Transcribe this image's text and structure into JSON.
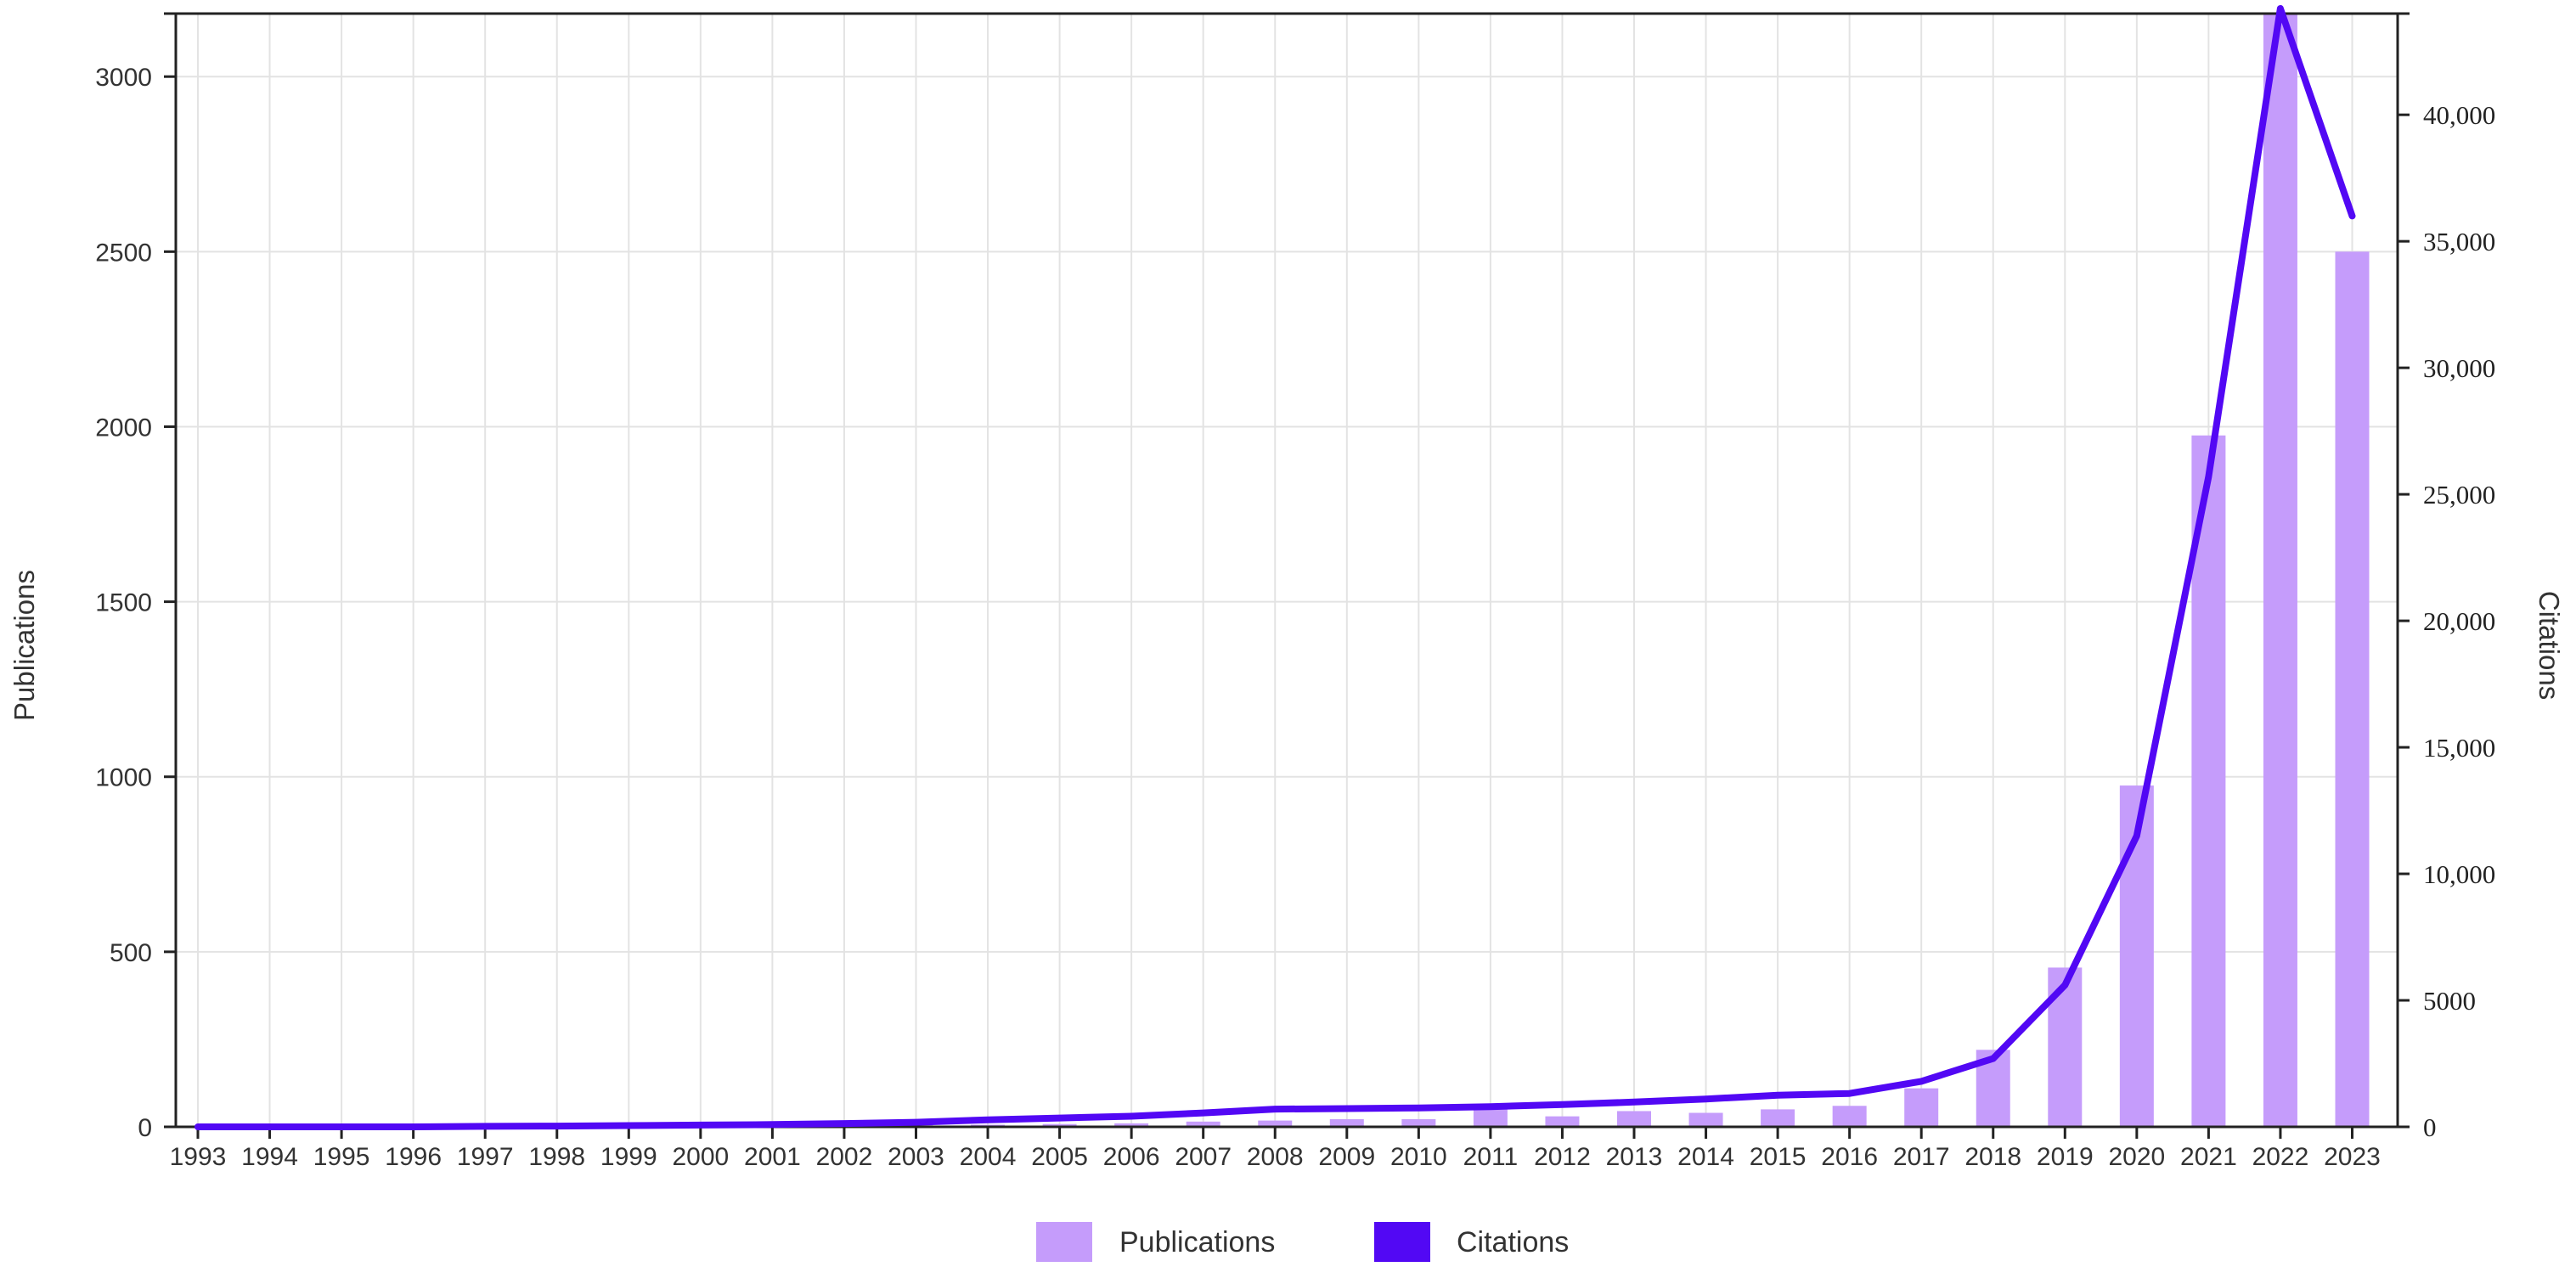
{
  "chart_data": {
    "type": "bar",
    "x": [
      "1993",
      "1994",
      "1995",
      "1996",
      "1997",
      "1998",
      "1999",
      "2000",
      "2001",
      "2002",
      "2003",
      "2004",
      "2005",
      "2006",
      "2007",
      "2008",
      "2009",
      "2010",
      "2011",
      "2012",
      "2013",
      "2014",
      "2015",
      "2016",
      "2017",
      "2018",
      "2019",
      "2020",
      "2021",
      "2022",
      "2023"
    ],
    "series": [
      {
        "name": "Publications",
        "type": "bar",
        "axis": "left",
        "color": "#c59cfb",
        "values": [
          0,
          0,
          0,
          0,
          0,
          1,
          2,
          3,
          3,
          4,
          5,
          6,
          8,
          10,
          15,
          18,
          22,
          22,
          50,
          30,
          45,
          40,
          50,
          60,
          110,
          220,
          455,
          975,
          1975,
          3200,
          2500
        ]
      },
      {
        "name": "Citations",
        "type": "line",
        "axis": "right",
        "color": "#5208f4",
        "values": [
          0,
          0,
          0,
          0,
          20,
          30,
          50,
          70,
          90,
          130,
          180,
          280,
          350,
          420,
          550,
          700,
          720,
          750,
          800,
          880,
          980,
          1100,
          1250,
          1320,
          1800,
          2700,
          5600,
          11500,
          25700,
          44200,
          36000
        ]
      }
    ],
    "left_axis": {
      "label": "Publications",
      "ticks": [
        "0",
        "500",
        "1000",
        "1500",
        "2000",
        "2500",
        "3000"
      ],
      "ylim": [
        0,
        3180
      ]
    },
    "right_axis": {
      "label": "Citations",
      "ticks": [
        "0",
        "5000",
        "10,000",
        "15,000",
        "20,000",
        "25,000",
        "30,000",
        "35,000",
        "40,000"
      ],
      "tick_values": [
        0,
        5000,
        10000,
        15000,
        20000,
        25000,
        30000,
        35000,
        40000
      ],
      "ylim": [
        0,
        44000
      ]
    },
    "grid": true,
    "legend": {
      "position": "bottom-center",
      "entries": [
        {
          "label": "Publications",
          "color": "#c59cfb"
        },
        {
          "label": "Citations",
          "color": "#5208f4"
        }
      ]
    }
  }
}
